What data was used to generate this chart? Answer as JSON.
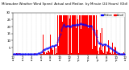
{
  "title": "Milwaukee Weather Wind Speed  Actual and Median  by Minute (24 Hours) (Old)",
  "n_minutes": 1440,
  "bar_color": "#ff0000",
  "median_color": "#0000ff",
  "background_color": "#ffffff",
  "plot_bg_color": "#ffffff",
  "ylim": [
    0,
    30
  ],
  "yticks": [
    5,
    10,
    15,
    20,
    25,
    30
  ],
  "ytick_labels": [
    "5",
    "10",
    "15",
    "20",
    "25",
    "30"
  ],
  "legend_actual": "Actual",
  "legend_median": "Median",
  "xlabel_fontsize": 2.8,
  "ylabel_fontsize": 2.8,
  "title_fontsize": 2.8
}
